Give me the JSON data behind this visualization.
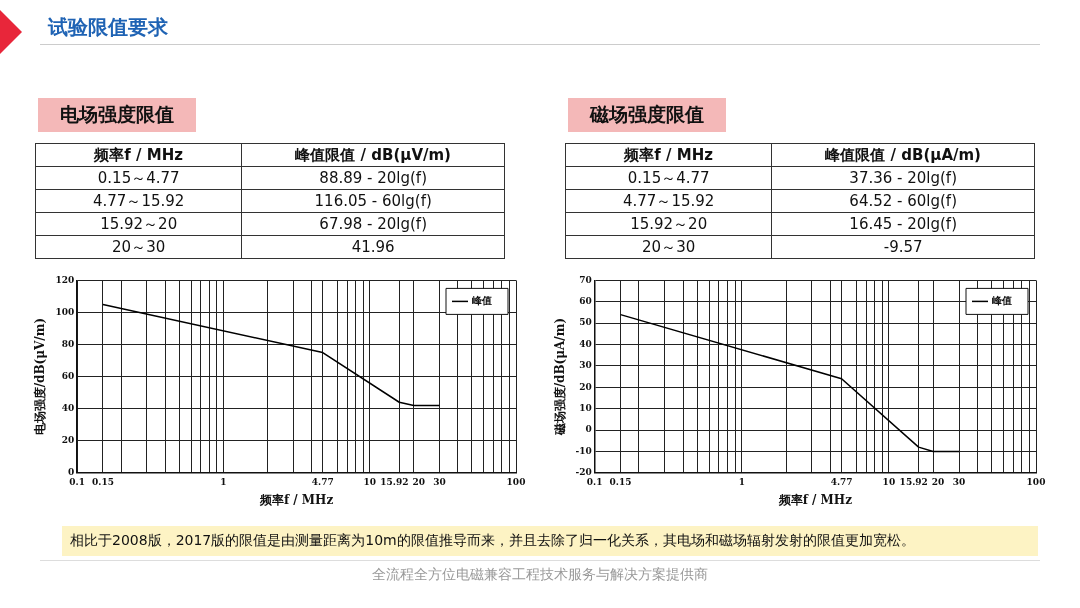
{
  "chart_data": [
    {
      "type": "other",
      "title": "试验限值要求",
      "annotations": [
        "相比于2008版，2017版的限值是由测量距离为10m的限值推导而来，并且去除了归一化关系，其电场和磁场辐射发射的限值更加宽松。",
        "全流程全方位电磁兼容工程技术服务与解决方案提供商"
      ]
    },
    {
      "type": "other",
      "title": "电场强度限值",
      "annotations": [
        "频率f / MHz",
        "峰值限值 / dB(μV/m)",
        "0.15～4.77",
        "88.89 - 20lg(f)",
        "4.77～15.92",
        "116.05 - 60lg(f)",
        "15.92～20",
        "67.98 - 20lg(f)",
        "20～30",
        "41.96"
      ]
    },
    {
      "type": "other",
      "title": "磁场强度限值",
      "annotations": [
        "频率f / MHz",
        "峰值限值 / dB(μA/m)",
        "0.15～4.77",
        "37.36 - 20lg(f)",
        "4.77～15.92",
        "64.52 - 60lg(f)",
        "15.92～20",
        "16.45 - 20lg(f)",
        "20～30",
        "-9.57"
      ]
    },
    {
      "type": "line",
      "xlabel": "频率f / MHz",
      "ylabel": "电场强度/dB(μV/m)",
      "log": "x",
      "grid": true,
      "legend": "top right",
      "marker": "none",
      "line_style": "solid",
      "x": [
        0.15,
        4.77,
        15.92,
        20,
        30
      ],
      "series": [
        {
          "name": "峰值",
          "color": "#000000",
          "values": [
            105,
            75,
            44,
            42,
            42
          ]
        }
      ],
      "xlim": [
        0.1,
        100
      ],
      "xticks": [
        0.1,
        0.15,
        {
          "value": 0.2,
          "label": null
        },
        {
          "value": 0.3,
          "label": null
        },
        {
          "value": 0.4,
          "label": null
        },
        {
          "value": 0.5,
          "label": null
        },
        {
          "value": 0.6,
          "label": null
        },
        {
          "value": 0.7,
          "label": null
        },
        {
          "value": 0.8,
          "label": null
        },
        {
          "value": 0.9,
          "label": null
        },
        1,
        {
          "value": 2,
          "label": null
        },
        {
          "value": 3,
          "label": null
        },
        {
          "value": 4,
          "label": null
        },
        4.77,
        {
          "value": 6,
          "label": null
        },
        {
          "value": 7,
          "label": null
        },
        {
          "value": 8,
          "label": null
        },
        {
          "value": 9,
          "label": null
        },
        10,
        15.92,
        20,
        30,
        {
          "value": 40,
          "label": null
        },
        {
          "value": 50,
          "label": null
        },
        {
          "value": 60,
          "label": null
        },
        {
          "value": 70,
          "label": null
        },
        {
          "value": 80,
          "label": null
        },
        {
          "value": 90,
          "label": null
        },
        100
      ],
      "ylim": [
        0,
        120
      ],
      "yticks": [
        0,
        20,
        40,
        60,
        80,
        100,
        120
      ]
    },
    {
      "type": "line",
      "xlabel": "频率f / MHz",
      "ylabel": "磁场强度/dB(μA/m)",
      "log": "x",
      "grid": true,
      "legend": "top right",
      "marker": "none",
      "line_style": "solid",
      "x": [
        0.15,
        4.77,
        15.92,
        20,
        30
      ],
      "series": [
        {
          "name": "峰值",
          "color": "#000000",
          "values": [
            54,
            24,
            -8,
            -10,
            -10
          ]
        }
      ],
      "xlim": [
        0.1,
        100
      ],
      "xticks": [
        0.1,
        0.15,
        {
          "value": 0.2,
          "label": null
        },
        {
          "value": 0.3,
          "label": null
        },
        {
          "value": 0.4,
          "label": null
        },
        {
          "value": 0.5,
          "label": null
        },
        {
          "value": 0.6,
          "label": null
        },
        {
          "value": 0.7,
          "label": null
        },
        {
          "value": 0.8,
          "label": null
        },
        {
          "value": 0.9,
          "label": null
        },
        1,
        {
          "value": 2,
          "label": null
        },
        {
          "value": 3,
          "label": null
        },
        {
          "value": 4,
          "label": null
        },
        4.77,
        {
          "value": 6,
          "label": null
        },
        {
          "value": 7,
          "label": null
        },
        {
          "value": 8,
          "label": null
        },
        {
          "value": 9,
          "label": null
        },
        10,
        15.92,
        20,
        30,
        {
          "value": 40,
          "label": null
        },
        {
          "value": 50,
          "label": null
        },
        {
          "value": 60,
          "label": null
        },
        {
          "value": 70,
          "label": null
        },
        {
          "value": 80,
          "label": null
        },
        {
          "value": 90,
          "label": null
        },
        100
      ],
      "ylim": [
        -20,
        70
      ],
      "yticks": [
        -20,
        -10,
        0,
        10,
        20,
        30,
        40,
        50,
        60,
        70
      ]
    }
  ]
}
